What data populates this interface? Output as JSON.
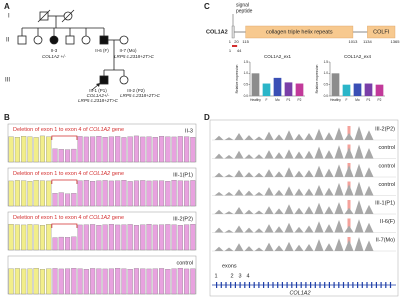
{
  "panel_a": {
    "letter": "A",
    "generations": [
      "I",
      "II",
      "III"
    ],
    "labels": [
      "II-3",
      "COL1A2 +/-",
      "II-6 (F)",
      "II-7 (Mo)",
      "LRP5 c.2318+2T>C",
      "III-1 (P1)",
      "COL1A2+/-",
      "LRP5 c.2318+2T>C",
      "III-2 (P2)",
      "LRP5 c.2318+2T>C"
    ]
  },
  "panel_c": {
    "letter": "C",
    "signal": [
      "signal",
      "peptide"
    ],
    "gene": "COL1A2",
    "domains": [
      "collagen triple helix repeats",
      "COLFI"
    ],
    "positions": [
      1,
      20,
      115,
      1013,
      1134,
      1365
    ],
    "deletion": [
      1,
      44
    ],
    "charts": [
      {
        "title": "COL1A2_ex1",
        "y_label": "Relative expression",
        "categories": [
          "Healthy",
          "F",
          "Mo",
          "P1",
          "P2"
        ],
        "values": [
          1.0,
          0.55,
          0.8,
          0.6,
          0.55
        ],
        "colors": [
          "#8c8c8c",
          "#2bb5c8",
          "#3a4fb5",
          "#7a3fa8",
          "#c23a9a"
        ],
        "ylim": [
          0,
          1.5
        ],
        "yticks": [
          {
            "value": 0,
            "label": "0.0"
          },
          {
            "value": 0.5,
            "label": "0.5"
          },
          {
            "value": 1,
            "label": "1.0"
          },
          {
            "value": 1.5,
            "label": "1.5"
          }
        ]
      },
      {
        "title": "COL1A2_ex4",
        "y_label": "Relative expression",
        "categories": [
          "Healthy",
          "F",
          "Mo",
          "P1",
          "P2"
        ],
        "values": [
          1.0,
          0.5,
          0.55,
          0.55,
          0.5
        ],
        "colors": [
          "#8c8c8c",
          "#2bb5c8",
          "#3a4fb5",
          "#7a3fa8",
          "#c23a9a"
        ],
        "ylim": [
          0,
          1.5
        ],
        "yticks": [
          {
            "value": 0,
            "label": "0.0"
          },
          {
            "value": 0.5,
            "label": "0.5"
          },
          {
            "value": 1,
            "label": "1.0"
          },
          {
            "value": 1.5,
            "label": "1.5"
          }
        ]
      }
    ]
  },
  "panel_b": {
    "letter": "B",
    "annotation": [
      "Deletion of exon 1 to exon 4 of ",
      "COL1A2",
      " gene"
    ],
    "colors": [
      "#f2ee8a",
      "#e8a2df"
    ],
    "reference_probes": 7,
    "ylim": [
      0,
      1.5
    ],
    "panels": [
      {
        "label": "II-3",
        "annotated": true,
        "values": [
          1.0,
          0.98,
          1.02,
          1.0,
          0.97,
          1.03,
          1.0,
          0.52,
          0.5,
          0.49,
          0.51,
          1.01,
          0.99,
          1.0,
          1.02,
          0.98,
          1.0,
          1.01,
          0.97,
          1.0,
          1.03,
          0.99,
          1.0,
          0.98,
          1.02,
          1.0,
          0.99,
          1.01,
          1.0,
          0.98
        ]
      },
      {
        "label": "III-1(P1)",
        "annotated": true,
        "values": [
          0.99,
          1.01,
          1.0,
          0.98,
          1.02,
          1.0,
          0.99,
          0.5,
          0.53,
          0.48,
          0.5,
          1.0,
          1.02,
          0.98,
          1.0,
          1.01,
          0.99,
          1.0,
          1.02,
          0.97,
          1.0,
          1.01,
          0.99,
          1.0,
          1.0,
          0.98,
          1.02,
          1.0,
          0.99,
          1.01
        ]
      },
      {
        "label": "III-2(P2)",
        "annotated": true,
        "values": [
          1.02,
          1.0,
          0.99,
          1.01,
          1.0,
          0.98,
          1.02,
          0.49,
          0.51,
          0.5,
          0.52,
          0.99,
          1.0,
          1.01,
          0.98,
          1.0,
          1.02,
          0.99,
          1.0,
          1.01,
          0.98,
          1.0,
          1.02,
          0.99,
          1.0,
          1.01,
          1.0,
          0.98,
          1.0,
          1.02
        ]
      },
      {
        "label": "control",
        "annotated": false,
        "values": [
          1.0,
          1.01,
          0.99,
          1.0,
          1.02,
          0.98,
          1.0,
          1.01,
          0.99,
          1.0,
          1.02,
          1.0,
          0.98,
          1.01,
          1.0,
          0.99,
          1.0,
          1.02,
          1.0,
          0.98,
          1.01,
          1.0,
          0.99,
          1.0,
          1.01,
          0.98,
          1.0,
          1.02,
          0.99,
          1.0
        ]
      }
    ]
  },
  "panel_d": {
    "letter": "D",
    "tracks": [
      {
        "label": "III-2(P2)",
        "color": "#c0392b",
        "coverage": [
          0.3,
          0.2,
          0.5,
          0.35,
          0.25,
          0.6,
          0.4,
          0.7,
          0.45,
          0.5,
          0.8,
          0.55,
          0.9,
          0.5,
          1.0,
          0.7
        ]
      },
      {
        "label": "control",
        "color": "#333333",
        "coverage": [
          0.35,
          0.25,
          0.55,
          0.3,
          0.3,
          0.6,
          0.45,
          0.65,
          0.5,
          0.55,
          0.85,
          0.6,
          0.95,
          0.8,
          1.0,
          0.75
        ]
      },
      {
        "label": "control",
        "color": "#333333",
        "coverage": [
          0.3,
          0.2,
          0.5,
          0.35,
          0.3,
          0.55,
          0.4,
          0.7,
          0.45,
          0.5,
          0.8,
          0.6,
          0.9,
          0.85,
          0.95,
          0.7
        ]
      },
      {
        "label": "control",
        "color": "#333333",
        "coverage": [
          0.25,
          0.25,
          0.45,
          0.35,
          0.25,
          0.6,
          0.4,
          0.65,
          0.5,
          0.5,
          0.75,
          0.55,
          0.9,
          0.8,
          1.0,
          0.7
        ]
      },
      {
        "label": "III-1(P1)",
        "color": "#c0392b",
        "coverage": [
          0.3,
          0.2,
          0.5,
          0.3,
          0.25,
          0.55,
          0.4,
          0.7,
          0.45,
          0.55,
          0.8,
          0.55,
          0.85,
          0.45,
          1.0,
          0.65
        ]
      },
      {
        "label": "II-6(F)",
        "color": "#c0392b",
        "coverage": [
          0.35,
          0.2,
          0.5,
          0.35,
          0.3,
          0.6,
          0.45,
          0.7,
          0.4,
          0.5,
          0.8,
          0.6,
          0.9,
          0.5,
          0.95,
          0.7
        ]
      },
      {
        "label": "II-7(Mo)",
        "color": "#c0392b",
        "coverage": [
          0.3,
          0.25,
          0.55,
          0.35,
          0.25,
          0.6,
          0.4,
          0.65,
          0.45,
          0.5,
          0.85,
          0.55,
          0.9,
          0.8,
          1.0,
          0.75
        ]
      }
    ],
    "exons_label": "exons",
    "exon_numbers": [
      "1",
      "2",
      "3",
      "4"
    ],
    "gene": "COL1A2"
  }
}
